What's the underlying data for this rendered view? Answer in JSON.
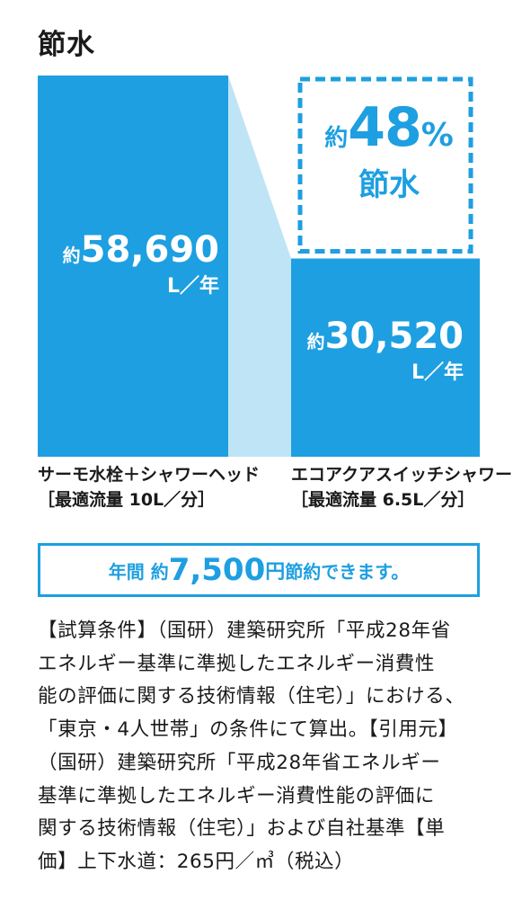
{
  "title": "節水",
  "colors": {
    "bar": "#1e9fe1",
    "connector": "#bfe4f6",
    "accent": "#1e9fe1"
  },
  "chart_data": {
    "type": "bar",
    "categories": [
      "サーモ水栓＋シャワーヘッド",
      "エコアクアスイッチシャワー"
    ],
    "category_notes": [
      "［最適流量 10L／分］",
      "［最適流量 6.5L／分］"
    ],
    "values": [
      58690,
      30520
    ],
    "unit": "L／年",
    "value_prefix": "約",
    "value_labels": [
      "58,690",
      "30,520"
    ],
    "saving": {
      "prefix": "約",
      "percent": "48",
      "percent_sign": "%",
      "label": "節水"
    }
  },
  "banner": {
    "part1": "年間 約",
    "amount": "7,500",
    "yen": "円",
    "part2": " 節約できます。"
  },
  "note_lines": [
    "【試算条件】（国研）建築研究所「平成28年省",
    "エネルギー基準に準拠したエネルギー消費性",
    "能の評価に関する技術情報（住宅）」における、",
    "「東京・4人世帯」の条件にて算出。【引用元】",
    "（国研）建築研究所「平成28年省エネルギー",
    "基準に準拠したエネルギー消費性能の評価に",
    "関する技術情報（住宅）」および自社基準【単",
    "価】上下水道：265円／㎥（税込）"
  ]
}
